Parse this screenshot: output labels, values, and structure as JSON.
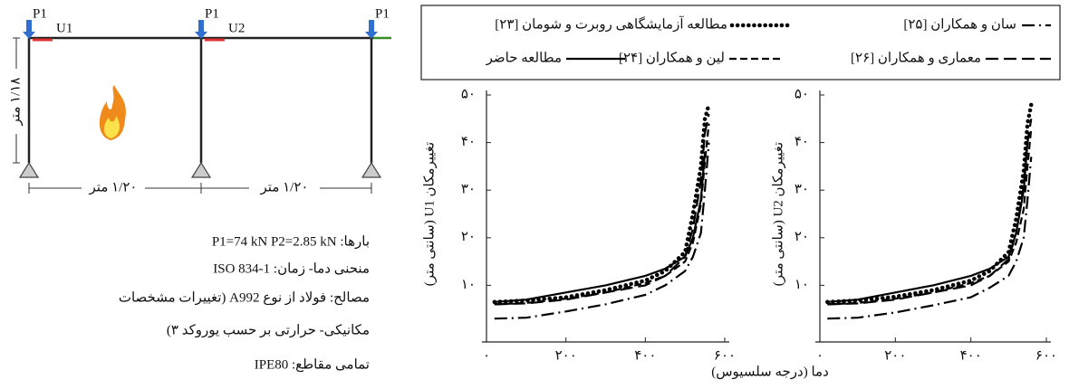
{
  "diagram": {
    "loads": [
      "P1",
      "P1",
      "P1"
    ],
    "displacements": [
      "U1",
      "U2"
    ],
    "height_label": "۱/۱۸ متر",
    "span_labels": [
      "۱/۲۰ متر",
      "۱/۲۰ متر"
    ]
  },
  "notes": [
    "بارها: P1=74 kN    P2=2.85 kN",
    "منحنی دما- زمان: ISO 834-1",
    "مصالح: فولاد از نوع A992 (تغییرات مشخصات",
    "مکانیکی- حرارتی بر حسب یوروکد ۳)",
    "تمامی مقاطع: IPE80"
  ],
  "x_label": "دما (درجه سلسیوس)",
  "chart_data": [
    {
      "type": "line",
      "y_label": "تغییرمکان U1 (سانتی متر)",
      "x": [
        20,
        100,
        200,
        300,
        400,
        450,
        500,
        520,
        540,
        550,
        560
      ],
      "xlim": [
        0,
        600
      ],
      "xticks": [
        {
          "value": 0,
          "label": "۰"
        },
        {
          "value": 200,
          "label": "۲۰۰"
        },
        {
          "value": 400,
          "label": "۴۰۰"
        },
        {
          "value": 600,
          "label": "۶۰۰"
        }
      ],
      "ylim": [
        0,
        50
      ],
      "yticks": [
        {
          "value": 10,
          "label": "۱۰"
        },
        {
          "value": 20,
          "label": "۲۰"
        },
        {
          "value": 30,
          "label": "۳۰"
        },
        {
          "value": 40,
          "label": "۴۰"
        },
        {
          "value": 50,
          "label": "۵۰"
        }
      ],
      "series": [
        {
          "name": "سان و همکاران [۲۵]",
          "color": "#000000",
          "dash": "14,5,2,5",
          "values": [
            3,
            3.2,
            4.5,
            6,
            8,
            10,
            13,
            16,
            21,
            30,
            40
          ]
        },
        {
          "name": "مطالعه آزمایشگاهی روبرت و شومان [۲۳]",
          "color": "#000000",
          "dash": "0.1,6",
          "values": [
            6.5,
            6.8,
            7.5,
            9,
            11,
            13,
            17,
            25,
            35,
            45,
            48
          ]
        },
        {
          "name": "معماری و همکاران [۲۶]",
          "color": "#000000",
          "dash": "14,6",
          "values": [
            6,
            6.2,
            7,
            8.5,
            10,
            12,
            16,
            22,
            32,
            42,
            46
          ]
        },
        {
          "name": "لین و همکاران [۲۴]",
          "color": "#000000",
          "dash": "8,4",
          "values": [
            6,
            6.3,
            7.2,
            8.5,
            10.5,
            12,
            15,
            19,
            27,
            36,
            44
          ]
        },
        {
          "name": "مطالعه حاضر",
          "color": "#000000",
          "dash": "none",
          "values": [
            6.5,
            7,
            8.5,
            10,
            12,
            13.5,
            16,
            20,
            28,
            38,
            null
          ]
        }
      ]
    },
    {
      "type": "line",
      "y_label": "تغییرمکان U2 (سانتی متر)",
      "x": [
        20,
        100,
        200,
        300,
        400,
        450,
        500,
        520,
        540,
        550,
        560
      ],
      "xlim": [
        0,
        600
      ],
      "xticks": [
        {
          "value": 0,
          "label": "۰"
        },
        {
          "value": 200,
          "label": "۲۰۰"
        },
        {
          "value": 400,
          "label": "۴۰۰"
        },
        {
          "value": 600,
          "label": "۶۰۰"
        }
      ],
      "ylim": [
        0,
        50
      ],
      "yticks": [
        {
          "value": 10,
          "label": "۱۰"
        },
        {
          "value": 20,
          "label": "۲۰"
        },
        {
          "value": 30,
          "label": "۳۰"
        },
        {
          "value": 40,
          "label": "۴۰"
        },
        {
          "value": 50,
          "label": "۵۰"
        }
      ],
      "series": [
        {
          "color": "#000000",
          "dash": "14,5,2,5",
          "values": [
            3,
            3.2,
            4.3,
            5.8,
            7.5,
            9.5,
            12,
            15,
            20,
            28,
            37
          ]
        },
        {
          "color": "#000000",
          "dash": "0.1,6",
          "values": [
            6.5,
            6.8,
            7.6,
            9,
            11,
            13,
            17,
            24,
            34,
            44,
            48
          ]
        },
        {
          "color": "#000000",
          "dash": "14,6",
          "values": [
            6,
            6.2,
            7,
            8.5,
            10,
            12,
            15.5,
            21,
            31,
            40,
            45
          ]
        },
        {
          "color": "#000000",
          "dash": "8,4",
          "values": [
            6,
            6.3,
            7.2,
            8.5,
            10.5,
            12,
            15,
            19,
            26,
            35,
            43
          ]
        },
        {
          "color": "#000000",
          "dash": "none",
          "values": [
            6.5,
            7,
            8.5,
            10,
            12,
            13.5,
            16,
            21,
            30,
            40,
            null
          ]
        }
      ]
    }
  ]
}
